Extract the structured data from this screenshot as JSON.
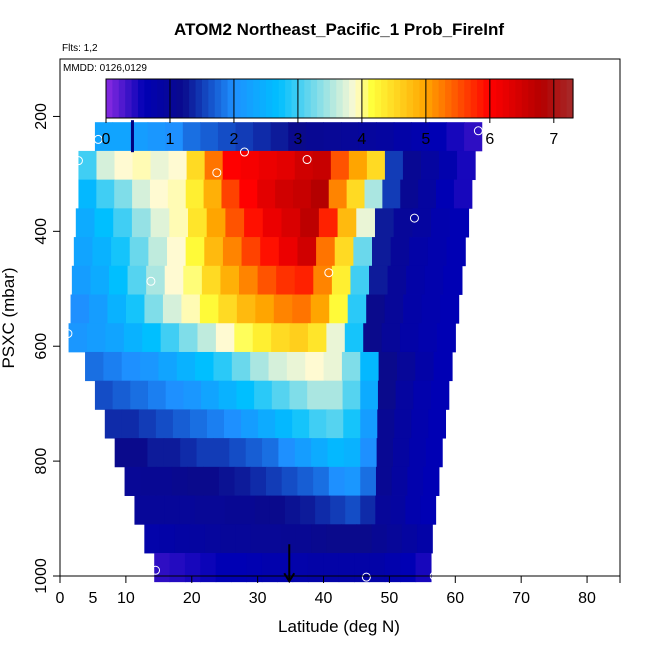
{
  "chart_data": {
    "type": "heatmap",
    "title": "ATOM2 Northeast_Pacific_1 Prob_FireInf",
    "flights_note": "Flts: 1,2",
    "dates_note": "MMDD: 0126,0129",
    "xlabel": "Latitude (deg N)",
    "ylabel": "PSXC (mbar)",
    "xlim": [
      0,
      85
    ],
    "ylim": [
      1000,
      100
    ],
    "x_ticks": [
      0,
      5,
      10,
      20,
      30,
      40,
      50,
      60,
      70,
      80
    ],
    "x_tick_marks": [
      0,
      10,
      20,
      30,
      40,
      50,
      60,
      70,
      80,
      85
    ],
    "y_ticks": [
      200,
      400,
      600,
      800,
      1000
    ],
    "colorbar": {
      "min": 0,
      "max": 7.3,
      "ticks": [
        0,
        1,
        2,
        3,
        4,
        5,
        6,
        7
      ],
      "colors": [
        "#8a2be2",
        "#0000b4",
        "#0a0a8c",
        "#1e90ff",
        "#00bfff",
        "#fffad2",
        "#ffff3c",
        "#ffa500",
        "#ff0000",
        "#b40000",
        "#a52a2a"
      ],
      "color_stops": [
        0,
        0.6,
        1.2,
        2.0,
        2.7,
        3.9,
        4.15,
        5.0,
        6.0,
        6.8,
        7.3
      ]
    },
    "rows": [
      {
        "p": 235,
        "x0": 5.3,
        "x1": 64.0,
        "values": [
          2.3,
          2.3,
          2.2,
          2.1,
          2.0,
          1.8,
          1.7,
          1.6,
          1.5,
          1.4,
          1.3,
          1.2,
          1.1,
          1.05,
          1.0,
          0.95,
          0.9,
          0.8,
          0.7,
          0.6,
          0.5,
          0.4
        ]
      },
      {
        "p": 285,
        "x0": 2.8,
        "x1": 63.0,
        "values": [
          3.0,
          3.7,
          3.9,
          3.95,
          3.8,
          3.9,
          4.5,
          5.3,
          6.0,
          6.1,
          6.2,
          6.3,
          6.5,
          6.6,
          5.5,
          5.0,
          4.5,
          1.5,
          1.1,
          0.9,
          0.7,
          0.5
        ]
      },
      {
        "p": 335,
        "x0": 2.8,
        "x1": 62.5,
        "values": [
          2.6,
          3.0,
          3.3,
          3.7,
          3.9,
          3.95,
          4.3,
          4.9,
          5.6,
          6.0,
          6.3,
          6.5,
          6.6,
          6.8,
          5.2,
          4.5,
          3.5,
          1.5,
          1.1,
          0.9,
          0.6,
          0.5
        ]
      },
      {
        "p": 385,
        "x0": 2.4,
        "x1": 62.0,
        "values": [
          2.4,
          2.7,
          3.0,
          3.4,
          3.75,
          3.95,
          4.4,
          5.0,
          5.5,
          5.9,
          6.2,
          6.4,
          6.7,
          5.8,
          4.8,
          3.8,
          1.3,
          1.0,
          0.9,
          0.7,
          0.6
        ]
      },
      {
        "p": 435,
        "x0": 2.1,
        "x1": 61.5,
        "values": [
          2.3,
          2.5,
          2.8,
          3.2,
          3.6,
          3.9,
          4.2,
          4.8,
          5.2,
          5.6,
          5.9,
          6.2,
          6.5,
          5.3,
          4.5,
          3.2,
          1.3,
          1.0,
          0.8,
          0.7,
          0.6
        ]
      },
      {
        "p": 485,
        "x0": 1.8,
        "x1": 61.0,
        "values": [
          2.2,
          2.4,
          2.7,
          3.1,
          3.5,
          3.9,
          4.05,
          4.5,
          4.9,
          5.2,
          5.5,
          5.7,
          5.8,
          5.2,
          4.3,
          3.0,
          1.3,
          1.0,
          0.8,
          0.7,
          0.6
        ]
      },
      {
        "p": 535,
        "x0": 1.6,
        "x1": 60.5,
        "values": [
          2.0,
          2.2,
          2.5,
          2.8,
          3.3,
          3.7,
          3.95,
          4.2,
          4.5,
          4.8,
          5.0,
          5.2,
          5.3,
          5.0,
          4.2,
          2.9,
          1.2,
          1.0,
          0.8,
          0.7,
          0.6
        ]
      },
      {
        "p": 585,
        "x0": 1.3,
        "x1": 60.0,
        "values": [
          2.1,
          2.2,
          2.3,
          2.5,
          2.7,
          3.0,
          3.3,
          3.6,
          3.9,
          4.1,
          4.3,
          4.5,
          4.6,
          4.4,
          3.8,
          2.8,
          1.2,
          1.0,
          0.8,
          0.7,
          0.6
        ]
      },
      {
        "p": 635,
        "x0": 3.8,
        "x1": 59.5,
        "values": [
          1.8,
          1.9,
          2.0,
          2.1,
          2.3,
          2.5,
          2.7,
          2.9,
          3.2,
          3.5,
          3.7,
          3.8,
          3.9,
          3.8,
          3.3,
          2.6,
          1.2,
          1.0,
          0.8,
          0.6
        ]
      },
      {
        "p": 685,
        "x0": 5.3,
        "x1": 59.0,
        "values": [
          1.6,
          1.7,
          1.8,
          1.9,
          2.0,
          2.1,
          2.3,
          2.5,
          2.7,
          2.9,
          3.1,
          3.3,
          3.5,
          3.5,
          3.1,
          2.4,
          1.2,
          0.9,
          0.7,
          0.6
        ]
      },
      {
        "p": 735,
        "x0": 6.8,
        "x1": 58.5,
        "values": [
          1.4,
          1.4,
          1.5,
          1.6,
          1.7,
          1.8,
          1.9,
          2.0,
          2.2,
          2.4,
          2.6,
          2.8,
          3.0,
          3.1,
          2.8,
          2.2,
          1.1,
          0.9,
          0.7,
          0.6
        ]
      },
      {
        "p": 785,
        "x0": 8.3,
        "x1": 58.0,
        "values": [
          1.2,
          1.2,
          1.3,
          1.3,
          1.4,
          1.5,
          1.5,
          1.6,
          1.7,
          1.8,
          2.0,
          2.2,
          2.4,
          2.6,
          2.5,
          2.0,
          1.1,
          0.9,
          0.7,
          0.6
        ]
      },
      {
        "p": 835,
        "x0": 9.8,
        "x1": 57.5,
        "values": [
          1.05,
          1.1,
          1.1,
          1.15,
          1.2,
          1.2,
          1.25,
          1.3,
          1.4,
          1.5,
          1.6,
          1.7,
          1.8,
          2.0,
          2.1,
          1.8,
          1.1,
          0.9,
          0.7,
          0.6
        ]
      },
      {
        "p": 885,
        "x0": 11.3,
        "x1": 57.0,
        "values": [
          1.0,
          1.0,
          1.0,
          1.0,
          1.05,
          1.05,
          1.1,
          1.1,
          1.15,
          1.2,
          1.25,
          1.3,
          1.4,
          1.5,
          1.6,
          1.4,
          1.0,
          0.9,
          0.7,
          0.6
        ]
      },
      {
        "p": 935,
        "x0": 12.8,
        "x1": 56.5,
        "values": [
          0.75,
          0.8,
          0.85,
          0.9,
          0.95,
          1.0,
          1.0,
          1.05,
          1.05,
          1.1,
          1.1,
          1.15,
          1.2,
          1.2,
          1.2,
          1.1,
          1.0,
          0.9,
          0.8
        ]
      },
      {
        "p": 985,
        "x0": 14.3,
        "x1": 56.3,
        "values": [
          0.4,
          0.45,
          0.5,
          0.55,
          0.6,
          0.6,
          0.65,
          0.7,
          0.7,
          0.75,
          0.8,
          0.8,
          0.8,
          0.8,
          0.8,
          0.7,
          0.6,
          0.5
        ]
      }
    ],
    "row_height_mbar": 50,
    "sample_points": [
      {
        "x": 5.8,
        "p": 240
      },
      {
        "x": 2.8,
        "p": 277
      },
      {
        "x": 23.8,
        "p": 298
      },
      {
        "x": 28.0,
        "p": 262
      },
      {
        "x": 37.5,
        "p": 275
      },
      {
        "x": 63.5,
        "p": 225
      },
      {
        "x": 53.8,
        "p": 377
      },
      {
        "x": 40.8,
        "p": 472
      },
      {
        "x": 13.8,
        "p": 487
      },
      {
        "x": 1.2,
        "p": 578
      },
      {
        "x": 14.5,
        "p": 990
      },
      {
        "x": 46.5,
        "p": 1002
      },
      {
        "x": 56.8,
        "p": 1000
      }
    ],
    "markers": [
      {
        "x": 11.0,
        "p": 210,
        "direction": "up"
      },
      {
        "x": 34.8,
        "p": 990,
        "direction": "down"
      }
    ]
  }
}
